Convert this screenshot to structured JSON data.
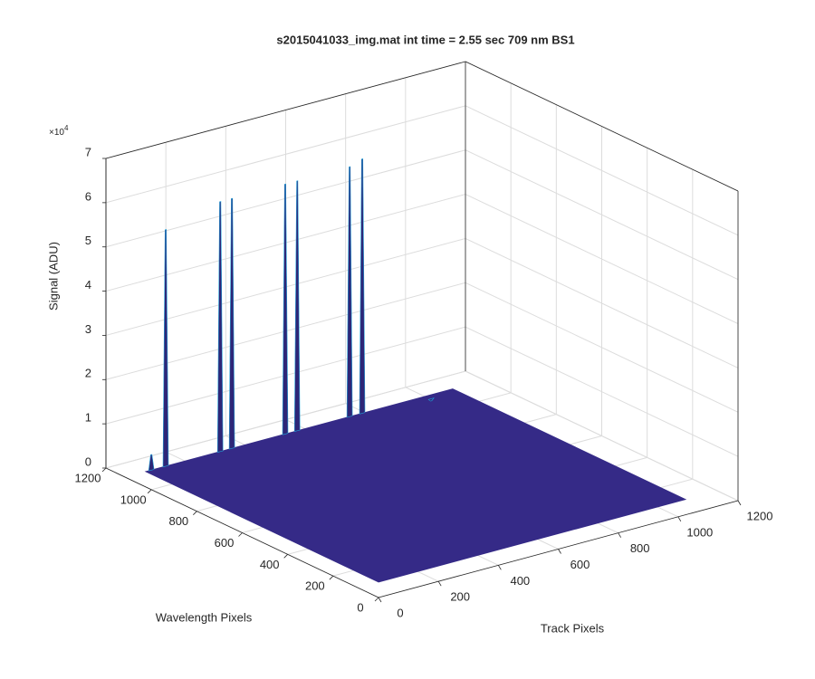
{
  "chart_data": {
    "type": "surface3d",
    "title": "s2015041033_img.mat int time = 2.55 sec  709 nm BS1",
    "xlabel": "Track Pixels",
    "ylabel": "Wavelength Pixels",
    "zlabel": "Signal (ADU)",
    "z_exponent_base": "×10",
    "z_exponent": 4,
    "xlim": [
      0,
      1200
    ],
    "xticks": [
      0,
      200,
      400,
      600,
      800,
      1000,
      1200
    ],
    "ylim": [
      0,
      1200
    ],
    "yticks": [
      0,
      200,
      400,
      600,
      800,
      1000,
      1200
    ],
    "zlim": [
      0,
      7
    ],
    "zticks": [
      0,
      1,
      2,
      3,
      4,
      5,
      6,
      7
    ],
    "grid": true,
    "surface_x": [
      0,
      1024
    ],
    "surface_y": [
      0,
      1024
    ],
    "baseline": 0.35,
    "x": [
      18,
      66,
      248,
      287,
      465,
      505,
      680,
      722,
      934
    ],
    "y": [
      1024,
      1024,
      1024,
      1024,
      1024,
      1024,
      1024,
      1024,
      1000
    ],
    "z": [
      0.7,
      5.7,
      6.0,
      6.0,
      6.0,
      6.0,
      6.0,
      6.1,
      0.3
    ],
    "surface_color": "#352a87",
    "peak_color": "#2e2677",
    "edge_color": "#1fa0d8"
  }
}
